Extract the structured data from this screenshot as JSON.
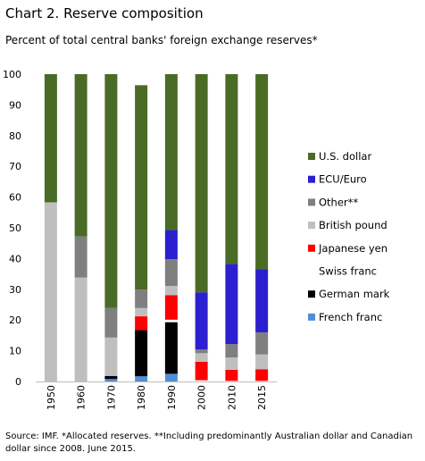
{
  "chart_data": {
    "type": "bar",
    "stacked": true,
    "title": "Chart 2.  Reserve composition",
    "subtitle": "Percent of total central banks' foreign exchange reserves*",
    "categories": [
      "1950",
      "1960",
      "1970",
      "1980",
      "1990",
      "2000",
      "2010",
      "2015"
    ],
    "ylim": [
      0,
      100
    ],
    "yticks": [
      0,
      10,
      20,
      30,
      40,
      50,
      60,
      70,
      80,
      90,
      100
    ],
    "grid": false,
    "legend_position": "right",
    "series": [
      {
        "name": "French franc",
        "color": "#4f8fd6",
        "values": [
          0,
          0,
          0.8,
          1.7,
          2.5,
          0,
          0,
          0
        ]
      },
      {
        "name": "German mark",
        "color": "#000000",
        "values": [
          0,
          0,
          1.0,
          15.0,
          16.8,
          0,
          0,
          0
        ]
      },
      {
        "name": "Swiss franc",
        "color": "#ffffff",
        "values": [
          0,
          0,
          0,
          0,
          0.8,
          0.4,
          0.2,
          0.2
        ]
      },
      {
        "name": "Japanese yen",
        "color": "#ff0000",
        "values": [
          0,
          0,
          0,
          4.5,
          8.0,
          6.0,
          3.6,
          3.8
        ]
      },
      {
        "name": "British pound",
        "color": "#bfbfbf",
        "values": [
          58.3,
          33.8,
          12.5,
          2.7,
          3.0,
          2.8,
          4.0,
          4.8
        ]
      },
      {
        "name": "Other**",
        "color": "#7f7f7f",
        "values": [
          0,
          13.4,
          9.6,
          6.0,
          8.7,
          1.2,
          4.4,
          7.2
        ]
      },
      {
        "name": "ECU/Euro",
        "color": "#2b1fcf",
        "values": [
          0,
          0,
          0,
          0,
          9.5,
          18.6,
          26.0,
          20.5
        ]
      },
      {
        "name": "U.S. dollar",
        "color": "#4a6b26",
        "values": [
          41.7,
          52.8,
          76.1,
          66.5,
          50.7,
          71.0,
          61.8,
          63.5
        ]
      }
    ],
    "legend_order": [
      "U.S. dollar",
      "ECU/Euro",
      "Other**",
      "British pound",
      "Japanese yen",
      "Swiss franc",
      "German mark",
      "French franc"
    ]
  },
  "source": "Source: IMF. *Allocated reserves. **Including predominantly Australian dollar and Canadian dollar since 2008. June 2015."
}
